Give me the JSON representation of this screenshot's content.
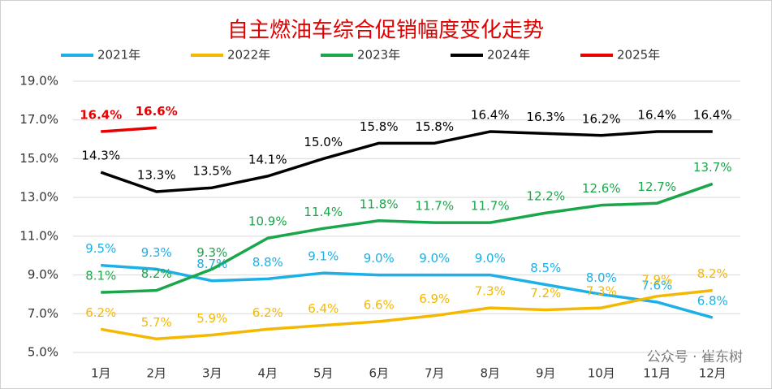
{
  "chart_data": {
    "type": "line",
    "title": "自主燃油车综合促销幅度变化走势",
    "categories": [
      "1月",
      "2月",
      "3月",
      "4月",
      "5月",
      "6月",
      "7月",
      "8月",
      "9月",
      "10月",
      "11月",
      "12月"
    ],
    "series": [
      {
        "name": "2021年",
        "color": "#1cb0e6",
        "values": [
          9.5,
          9.3,
          8.7,
          8.8,
          9.1,
          9.0,
          9.0,
          9.0,
          8.5,
          8.0,
          7.6,
          6.8
        ],
        "value_labels": [
          "9.5%",
          "9.3%",
          "8.7%",
          "8.8%",
          "9.1%",
          "9.0%",
          "9.0%",
          "9.0%",
          "8.5%",
          "8.0%",
          "7.6%",
          "6.8%"
        ]
      },
      {
        "name": "2022年",
        "color": "#f5b800",
        "values": [
          6.2,
          5.7,
          5.9,
          6.2,
          6.4,
          6.6,
          6.9,
          7.3,
          7.2,
          7.3,
          7.9,
          8.2
        ],
        "value_labels": [
          "6.2%",
          "5.7%",
          "5.9%",
          "6.2%",
          "6.4%",
          "6.6%",
          "6.9%",
          "7.3%",
          "7.2%",
          "7.3%",
          "7.9%",
          "8.2%"
        ]
      },
      {
        "name": "2023年",
        "color": "#1aa64a",
        "values": [
          8.1,
          8.2,
          9.3,
          10.9,
          11.4,
          11.8,
          11.7,
          11.7,
          12.2,
          12.6,
          12.7,
          13.7
        ],
        "value_labels": [
          "8.1%",
          "8.2%",
          "9.3%",
          "10.9%",
          "11.4%",
          "11.8%",
          "11.7%",
          "11.7%",
          "12.2%",
          "12.6%",
          "12.7%",
          "13.7%"
        ]
      },
      {
        "name": "2024年",
        "color": "#000000",
        "values": [
          14.3,
          13.3,
          13.5,
          14.1,
          15.0,
          15.8,
          15.8,
          16.4,
          16.3,
          16.2,
          16.4,
          16.4
        ],
        "value_labels": [
          "14.3%",
          "13.3%",
          "13.5%",
          "14.1%",
          "15.0%",
          "15.8%",
          "15.8%",
          "16.4%",
          "16.3%",
          "16.2%",
          "16.4%",
          "16.4%"
        ]
      },
      {
        "name": "2025年",
        "color": "#e80000",
        "values": [
          16.4,
          16.6,
          null,
          null,
          null,
          null,
          null,
          null,
          null,
          null,
          null,
          null
        ],
        "value_labels": [
          "16.4%",
          "16.6%",
          null,
          null,
          null,
          null,
          null,
          null,
          null,
          null,
          null,
          null
        ]
      }
    ],
    "ylim": [
      5,
      19
    ],
    "yticks": [
      {
        "value": 5,
        "label": "5.0%"
      },
      {
        "value": 7,
        "label": "7.0%"
      },
      {
        "value": 9,
        "label": "9.0%"
      },
      {
        "value": 11,
        "label": "11.0%"
      },
      {
        "value": 13,
        "label": "13.0%"
      },
      {
        "value": 15,
        "label": "15.0%"
      },
      {
        "value": 17,
        "label": "17.0%"
      },
      {
        "value": 19,
        "label": "19.0%"
      }
    ],
    "grid": true,
    "legend": "top",
    "watermark": "公众号 · 崔东树"
  }
}
